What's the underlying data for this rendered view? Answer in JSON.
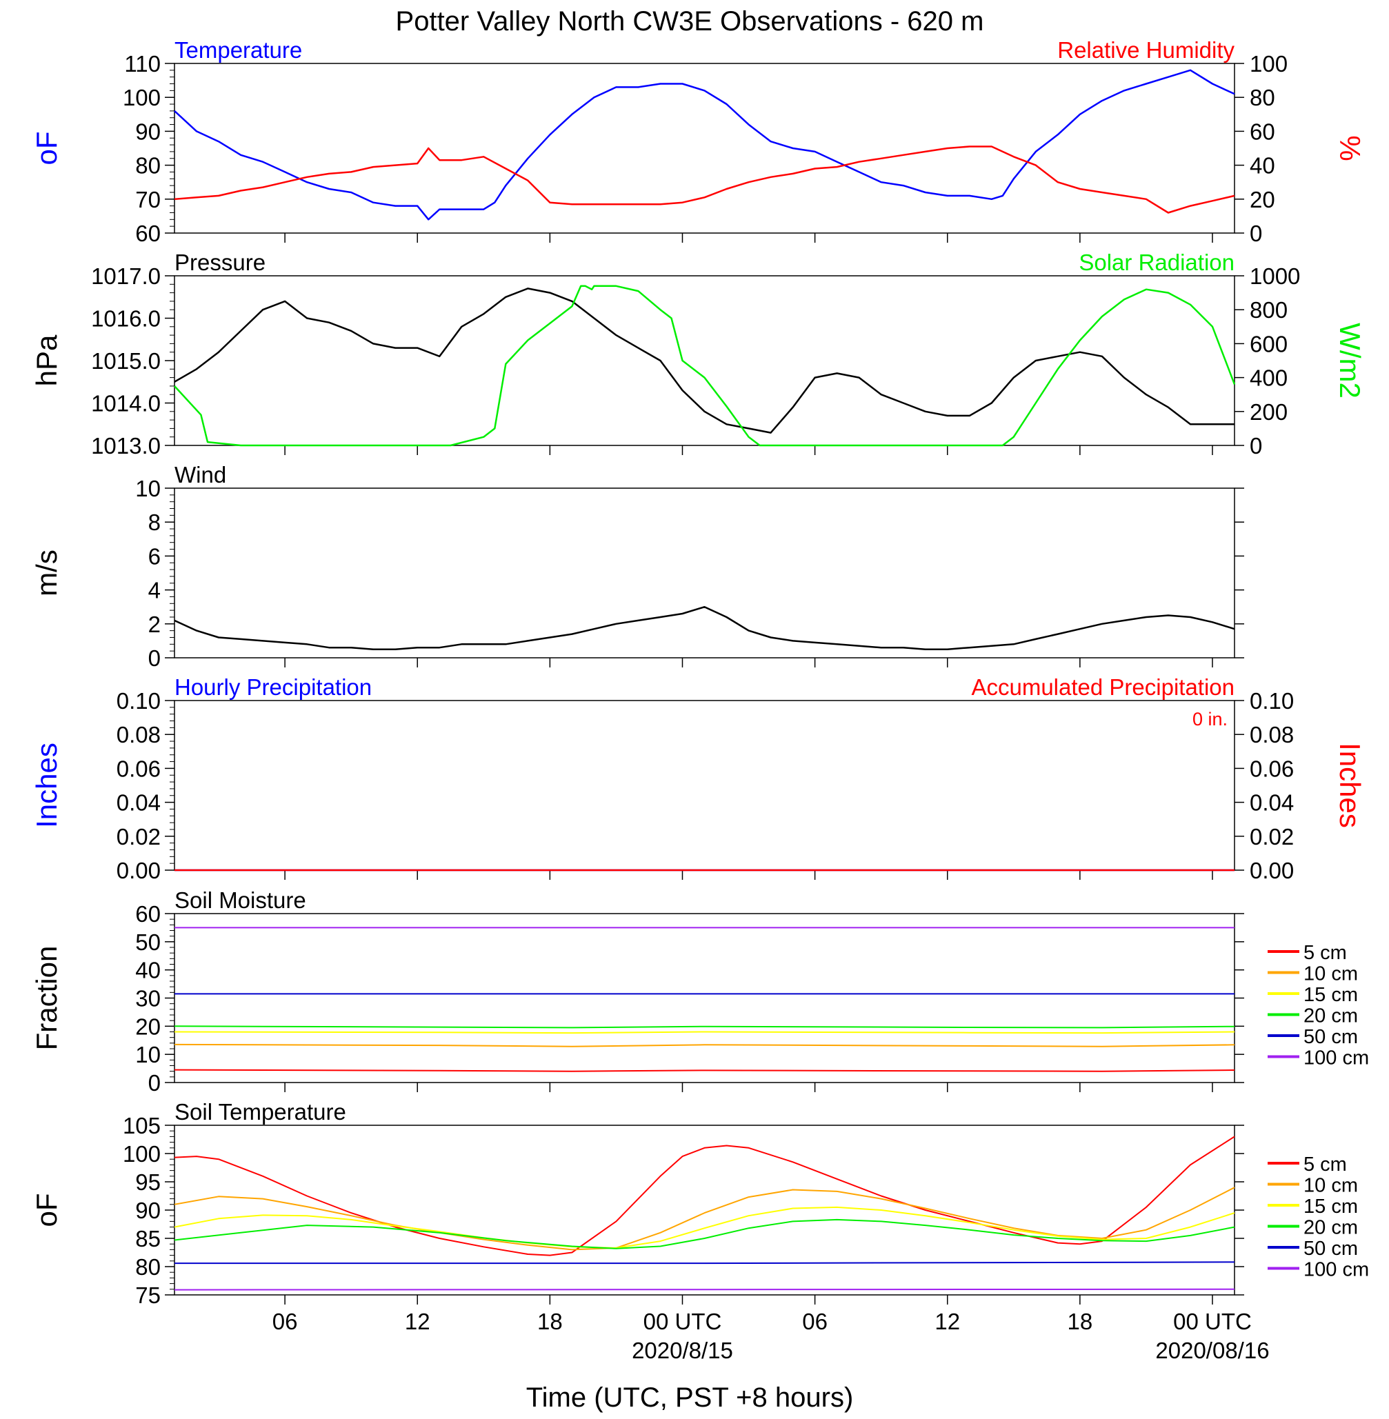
{
  "title": "Potter Valley North CW3E Observations - 620 m",
  "colors": {
    "blue": "#0000ff",
    "red": "#ff0000",
    "green": "#00ee00",
    "black": "#000000",
    "orange": "#ffa500",
    "yellow": "#ffff00",
    "purple": "#a020f0",
    "dark_blue": "#0000cc"
  },
  "time_axis": {
    "xlabel": "Time (UTC, PST +8 hours)",
    "range_hours": [
      0,
      48
    ],
    "tick_labels": [
      {
        "hour": 5,
        "label": "06",
        "date": ""
      },
      {
        "hour": 11,
        "label": "12",
        "date": ""
      },
      {
        "hour": 17,
        "label": "18",
        "date": ""
      },
      {
        "hour": 23,
        "label": "00 UTC",
        "date": "2020/8/15"
      },
      {
        "hour": 29,
        "label": "06",
        "date": ""
      },
      {
        "hour": 35,
        "label": "12",
        "date": ""
      },
      {
        "hour": 41,
        "label": "18",
        "date": ""
      },
      {
        "hour": 47,
        "label": "00 UTC",
        "date": "2020/08/16"
      }
    ]
  },
  "chart_data": [
    {
      "type": "line",
      "panel": "temperature-humidity",
      "left_title": "Temperature",
      "right_title": "Relative Humidity",
      "ylabel_left": "oF",
      "ylabel_right": "%",
      "ylim_left": [
        60,
        110
      ],
      "yticks_left": [
        "60",
        "70",
        "80",
        "90",
        "100",
        "110"
      ],
      "ylim_right": [
        0,
        100
      ],
      "yticks_right": [
        "0",
        "20",
        "40",
        "60",
        "80",
        "100"
      ],
      "series": [
        {
          "name": "Temperature",
          "axis": "left",
          "color": "blue",
          "x": [
            0,
            1,
            2,
            3,
            4,
            5,
            6,
            7,
            8,
            9,
            10,
            11,
            11.5,
            12,
            13,
            14,
            14.5,
            15,
            16,
            17,
            18,
            19,
            20,
            21,
            22,
            23,
            24,
            25,
            26,
            27,
            28,
            29,
            30,
            31,
            32,
            33,
            34,
            35,
            36,
            37,
            37.5,
            38,
            39,
            40,
            41,
            42,
            43,
            44,
            45,
            46,
            47,
            48
          ],
          "y": [
            96,
            90,
            87,
            83,
            81,
            78,
            75,
            73,
            72,
            69,
            68,
            68,
            64,
            67,
            67,
            67,
            69,
            74,
            82,
            89,
            95,
            100,
            103,
            103,
            104,
            104,
            102,
            98,
            92,
            87,
            85,
            84,
            81,
            78,
            75,
            74,
            72,
            71,
            71,
            70,
            71,
            76,
            84,
            89,
            95,
            99,
            102,
            104,
            106,
            108,
            104,
            101
          ]
        },
        {
          "name": "Relative Humidity",
          "axis": "right",
          "color": "red",
          "x": [
            0,
            1,
            2,
            3,
            4,
            5,
            6,
            7,
            8,
            9,
            10,
            11,
            11.5,
            12,
            13,
            14,
            15,
            16,
            17,
            18,
            19,
            20,
            21,
            22,
            23,
            24,
            25,
            26,
            27,
            28,
            29,
            30,
            31,
            32,
            33,
            34,
            35,
            36,
            37,
            38,
            39,
            40,
            41,
            42,
            43,
            44,
            45,
            46,
            47,
            48
          ],
          "y": [
            20,
            21,
            22,
            25,
            27,
            30,
            33,
            35,
            36,
            39,
            40,
            41,
            50,
            43,
            43,
            45,
            38,
            31,
            18,
            17,
            17,
            17,
            17,
            17,
            18,
            21,
            26,
            30,
            33,
            35,
            38,
            39,
            42,
            44,
            46,
            48,
            50,
            51,
            51,
            45,
            40,
            30,
            26,
            24,
            22,
            20,
            12,
            16,
            19,
            22
          ]
        }
      ]
    },
    {
      "type": "line",
      "panel": "pressure-solar",
      "left_title": "Pressure",
      "right_title": "Solar Radiation",
      "ylabel_left": "hPa",
      "ylabel_right": "W/m2",
      "ylim_left": [
        1013.0,
        1017.0
      ],
      "yticks_left": [
        "1013.0",
        "1014.0",
        "1015.0",
        "1016.0",
        "1017.0"
      ],
      "ylim_right": [
        0,
        1000
      ],
      "yticks_right": [
        "0",
        "200",
        "400",
        "600",
        "800",
        "1000"
      ],
      "series": [
        {
          "name": "Pressure",
          "axis": "left",
          "color": "black",
          "x": [
            0,
            1,
            2,
            3,
            4,
            5,
            6,
            7,
            8,
            9,
            10,
            11,
            12,
            13,
            14,
            15,
            16,
            17,
            18,
            19,
            20,
            21,
            22,
            23,
            24,
            25,
            26,
            27,
            28,
            29,
            30,
            31,
            32,
            33,
            34,
            35,
            36,
            37,
            38,
            39,
            40,
            41,
            42,
            43,
            44,
            45,
            46,
            47,
            48
          ],
          "y": [
            1014.5,
            1014.8,
            1015.2,
            1015.7,
            1016.2,
            1016.4,
            1016.0,
            1015.9,
            1015.7,
            1015.4,
            1015.3,
            1015.3,
            1015.1,
            1015.8,
            1016.1,
            1016.5,
            1016.7,
            1016.6,
            1016.4,
            1016.0,
            1015.6,
            1015.3,
            1015.0,
            1014.3,
            1013.8,
            1013.5,
            1013.4,
            1013.3,
            1013.9,
            1014.6,
            1014.7,
            1014.6,
            1014.2,
            1014.0,
            1013.8,
            1013.7,
            1013.7,
            1014.0,
            1014.6,
            1015.0,
            1015.1,
            1015.2,
            1015.1,
            1014.6,
            1014.2,
            1013.9,
            1013.5,
            1013.5,
            1013.5
          ]
        },
        {
          "name": "Solar Radiation",
          "axis": "right",
          "color": "green",
          "x": [
            0,
            1.2,
            1.5,
            3,
            6,
            9,
            12,
            12.5,
            14,
            14.5,
            15,
            16,
            17,
            18,
            18.4,
            18.6,
            18.9,
            19,
            20,
            21,
            22,
            22.5,
            23,
            24,
            25,
            26,
            26.5,
            27,
            30,
            33,
            36,
            37,
            37.5,
            38,
            39,
            40,
            41,
            42,
            43,
            44,
            45,
            46,
            47,
            48
          ],
          "y": [
            350,
            180,
            20,
            0,
            0,
            0,
            0,
            0,
            50,
            100,
            480,
            620,
            720,
            820,
            940,
            940,
            920,
            940,
            940,
            910,
            800,
            750,
            500,
            400,
            230,
            50,
            0,
            0,
            0,
            0,
            0,
            0,
            0,
            50,
            250,
            450,
            620,
            760,
            860,
            920,
            900,
            830,
            700,
            360
          ]
        }
      ]
    },
    {
      "type": "line",
      "panel": "wind",
      "left_title": "Wind",
      "ylabel_left": "m/s",
      "ylim_left": [
        0,
        10
      ],
      "yticks_left": [
        "0",
        "2",
        "4",
        "6",
        "8",
        "10"
      ],
      "series": [
        {
          "name": "Wind",
          "axis": "left",
          "color": "black",
          "x": [
            0,
            1,
            2,
            3,
            4,
            5,
            6,
            7,
            8,
            9,
            10,
            11,
            12,
            13,
            14,
            15,
            16,
            17,
            18,
            19,
            20,
            21,
            22,
            23,
            24,
            25,
            26,
            27,
            28,
            29,
            30,
            31,
            32,
            33,
            34,
            35,
            36,
            37,
            38,
            39,
            40,
            41,
            42,
            43,
            44,
            45,
            46,
            47,
            48
          ],
          "y": [
            2.2,
            1.6,
            1.2,
            1.1,
            1.0,
            0.9,
            0.8,
            0.6,
            0.6,
            0.5,
            0.5,
            0.6,
            0.6,
            0.8,
            0.8,
            0.8,
            1.0,
            1.2,
            1.4,
            1.7,
            2.0,
            2.2,
            2.4,
            2.6,
            3.0,
            2.4,
            1.6,
            1.2,
            1.0,
            0.9,
            0.8,
            0.7,
            0.6,
            0.6,
            0.5,
            0.5,
            0.6,
            0.7,
            0.8,
            1.1,
            1.4,
            1.7,
            2.0,
            2.2,
            2.4,
            2.5,
            2.4,
            2.1,
            1.7
          ]
        }
      ]
    },
    {
      "type": "line",
      "panel": "precipitation",
      "left_title": "Hourly Precipitation",
      "right_title": "Accumulated Precipitation",
      "annotation": "0 in.",
      "ylabel_left": "Inches",
      "ylabel_right": "Inches",
      "ylim_left": [
        0,
        0.1
      ],
      "yticks_left": [
        "0.00",
        "0.02",
        "0.04",
        "0.06",
        "0.08",
        "0.10"
      ],
      "ylim_right": [
        0,
        0.1
      ],
      "yticks_right": [
        "0.00",
        "0.02",
        "0.04",
        "0.06",
        "0.08",
        "0.10"
      ],
      "series": [
        {
          "name": "Hourly Precipitation",
          "axis": "left",
          "color": "blue",
          "x": [
            0,
            48
          ],
          "y": [
            0,
            0
          ]
        },
        {
          "name": "Accumulated Precipitation",
          "axis": "right",
          "color": "red",
          "x": [
            0,
            48
          ],
          "y": [
            0,
            0
          ]
        }
      ]
    },
    {
      "type": "line",
      "panel": "soil-moisture",
      "left_title": "Soil Moisture",
      "ylabel_left": "Fraction",
      "ylim_left": [
        0,
        60
      ],
      "yticks_left": [
        "0",
        "10",
        "20",
        "30",
        "40",
        "50",
        "60"
      ],
      "legend": "right",
      "series": [
        {
          "name": "5 cm",
          "axis": "left",
          "color": "red",
          "x": [
            0,
            12,
            18,
            24,
            36,
            42,
            48
          ],
          "y": [
            4.5,
            4.2,
            4.0,
            4.3,
            4.1,
            4.0,
            4.4
          ]
        },
        {
          "name": "10 cm",
          "axis": "left",
          "color": "orange",
          "x": [
            0,
            12,
            18,
            24,
            36,
            42,
            48
          ],
          "y": [
            13.5,
            13.2,
            12.8,
            13.4,
            13.0,
            12.8,
            13.4
          ]
        },
        {
          "name": "15 cm",
          "axis": "left",
          "color": "yellow",
          "x": [
            0,
            12,
            18,
            24,
            36,
            42,
            48
          ],
          "y": [
            18.0,
            17.8,
            17.6,
            18.0,
            17.7,
            17.6,
            18.0
          ]
        },
        {
          "name": "20 cm",
          "axis": "left",
          "color": "green",
          "x": [
            0,
            12,
            18,
            24,
            36,
            42,
            48
          ],
          "y": [
            20.0,
            19.7,
            19.5,
            19.9,
            19.6,
            19.5,
            19.9
          ]
        },
        {
          "name": "50 cm",
          "axis": "left",
          "color": "dark_blue",
          "x": [
            0,
            48
          ],
          "y": [
            31.5,
            31.5
          ]
        },
        {
          "name": "100 cm",
          "axis": "left",
          "color": "purple",
          "x": [
            0,
            48
          ],
          "y": [
            55.0,
            55.0
          ]
        }
      ]
    },
    {
      "type": "line",
      "panel": "soil-temperature",
      "left_title": "Soil Temperature",
      "ylabel_left": "oF",
      "ylim_left": [
        75,
        105
      ],
      "yticks_left": [
        "75",
        "80",
        "85",
        "90",
        "95",
        "100",
        "105"
      ],
      "legend": "right",
      "series": [
        {
          "name": "5 cm",
          "axis": "left",
          "color": "red",
          "x": [
            0,
            1,
            2,
            4,
            6,
            8,
            10,
            12,
            14,
            16,
            17,
            18,
            20,
            22,
            23,
            24,
            25,
            26,
            28,
            30,
            32,
            34,
            36,
            38,
            40,
            41,
            42,
            44,
            46,
            48
          ],
          "y": [
            99.3,
            99.5,
            99.0,
            96.0,
            92.5,
            89.5,
            87.0,
            85.0,
            83.5,
            82.2,
            82.0,
            82.5,
            88.0,
            96.0,
            99.5,
            101.0,
            101.4,
            101.0,
            98.5,
            95.5,
            92.5,
            90.0,
            88.0,
            86.0,
            84.2,
            84.0,
            84.5,
            90.5,
            98.0,
            103.0
          ]
        },
        {
          "name": "10 cm",
          "axis": "left",
          "color": "orange",
          "x": [
            0,
            2,
            4,
            6,
            8,
            10,
            12,
            14,
            16,
            18,
            20,
            22,
            24,
            26,
            28,
            30,
            32,
            34,
            36,
            38,
            40,
            42,
            44,
            46,
            48
          ],
          "y": [
            91.0,
            92.4,
            92.0,
            90.6,
            89.0,
            87.3,
            86.0,
            84.8,
            83.8,
            83.0,
            83.3,
            86.0,
            89.5,
            92.3,
            93.6,
            93.3,
            92.0,
            90.3,
            88.5,
            86.8,
            85.5,
            85.0,
            86.5,
            90.0,
            94.0
          ]
        },
        {
          "name": "15 cm",
          "axis": "left",
          "color": "yellow",
          "x": [
            0,
            2,
            4,
            6,
            8,
            10,
            12,
            14,
            16,
            18,
            20,
            22,
            24,
            26,
            28,
            30,
            32,
            34,
            36,
            38,
            40,
            42,
            44,
            46,
            48
          ],
          "y": [
            87.0,
            88.5,
            89.1,
            89.0,
            88.3,
            87.2,
            86.2,
            85.1,
            84.2,
            83.5,
            83.3,
            84.5,
            86.8,
            89.0,
            90.3,
            90.5,
            90.0,
            89.0,
            87.8,
            86.5,
            85.4,
            84.8,
            85.0,
            87.0,
            89.5
          ]
        },
        {
          "name": "20 cm",
          "axis": "left",
          "color": "green",
          "x": [
            0,
            3,
            6,
            9,
            12,
            15,
            18,
            20,
            22,
            24,
            26,
            28,
            30,
            32,
            34,
            36,
            38,
            40,
            42,
            44,
            46,
            48
          ],
          "y": [
            84.7,
            86.0,
            87.3,
            87.0,
            86.0,
            84.6,
            83.6,
            83.2,
            83.6,
            85.0,
            86.8,
            88.0,
            88.3,
            88.0,
            87.3,
            86.5,
            85.6,
            85.0,
            84.6,
            84.5,
            85.5,
            87.0
          ]
        },
        {
          "name": "50 cm",
          "axis": "left",
          "color": "dark_blue",
          "x": [
            0,
            24,
            48
          ],
          "y": [
            80.6,
            80.6,
            80.8
          ]
        },
        {
          "name": "100 cm",
          "axis": "left",
          "color": "purple",
          "x": [
            0,
            48
          ],
          "y": [
            75.9,
            76.0
          ]
        }
      ]
    }
  ]
}
